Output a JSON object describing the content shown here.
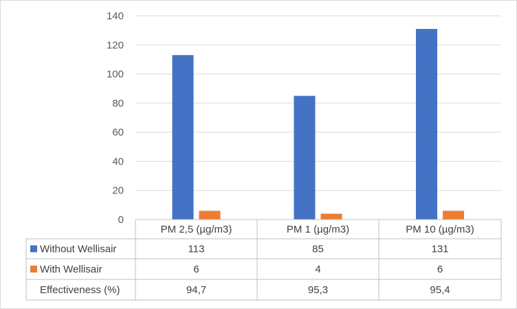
{
  "chart_data": {
    "type": "bar",
    "categories": [
      "PM 2,5  (µg/m3)",
      "PM 1  (µg/m3)",
      "PM 10  (µg/m3)"
    ],
    "series": [
      {
        "name": "Without Wellisair",
        "values": [
          113,
          85,
          131
        ],
        "value_labels": [
          "113",
          "85",
          "131"
        ],
        "color": "#4472c4"
      },
      {
        "name": "With Wellisair",
        "values": [
          6,
          4,
          6
        ],
        "value_labels": [
          "6",
          "4",
          "6"
        ],
        "color": "#ed7d31"
      }
    ],
    "extra_rows": [
      {
        "name": "Effectiveness (%)",
        "values": [
          "94,7",
          "95,3",
          "95,4"
        ]
      }
    ],
    "ylim": [
      0,
      140
    ],
    "yticks": [
      "0",
      "20",
      "40",
      "60",
      "80",
      "100",
      "120",
      "140"
    ],
    "grid": true,
    "legend": "data-table"
  }
}
